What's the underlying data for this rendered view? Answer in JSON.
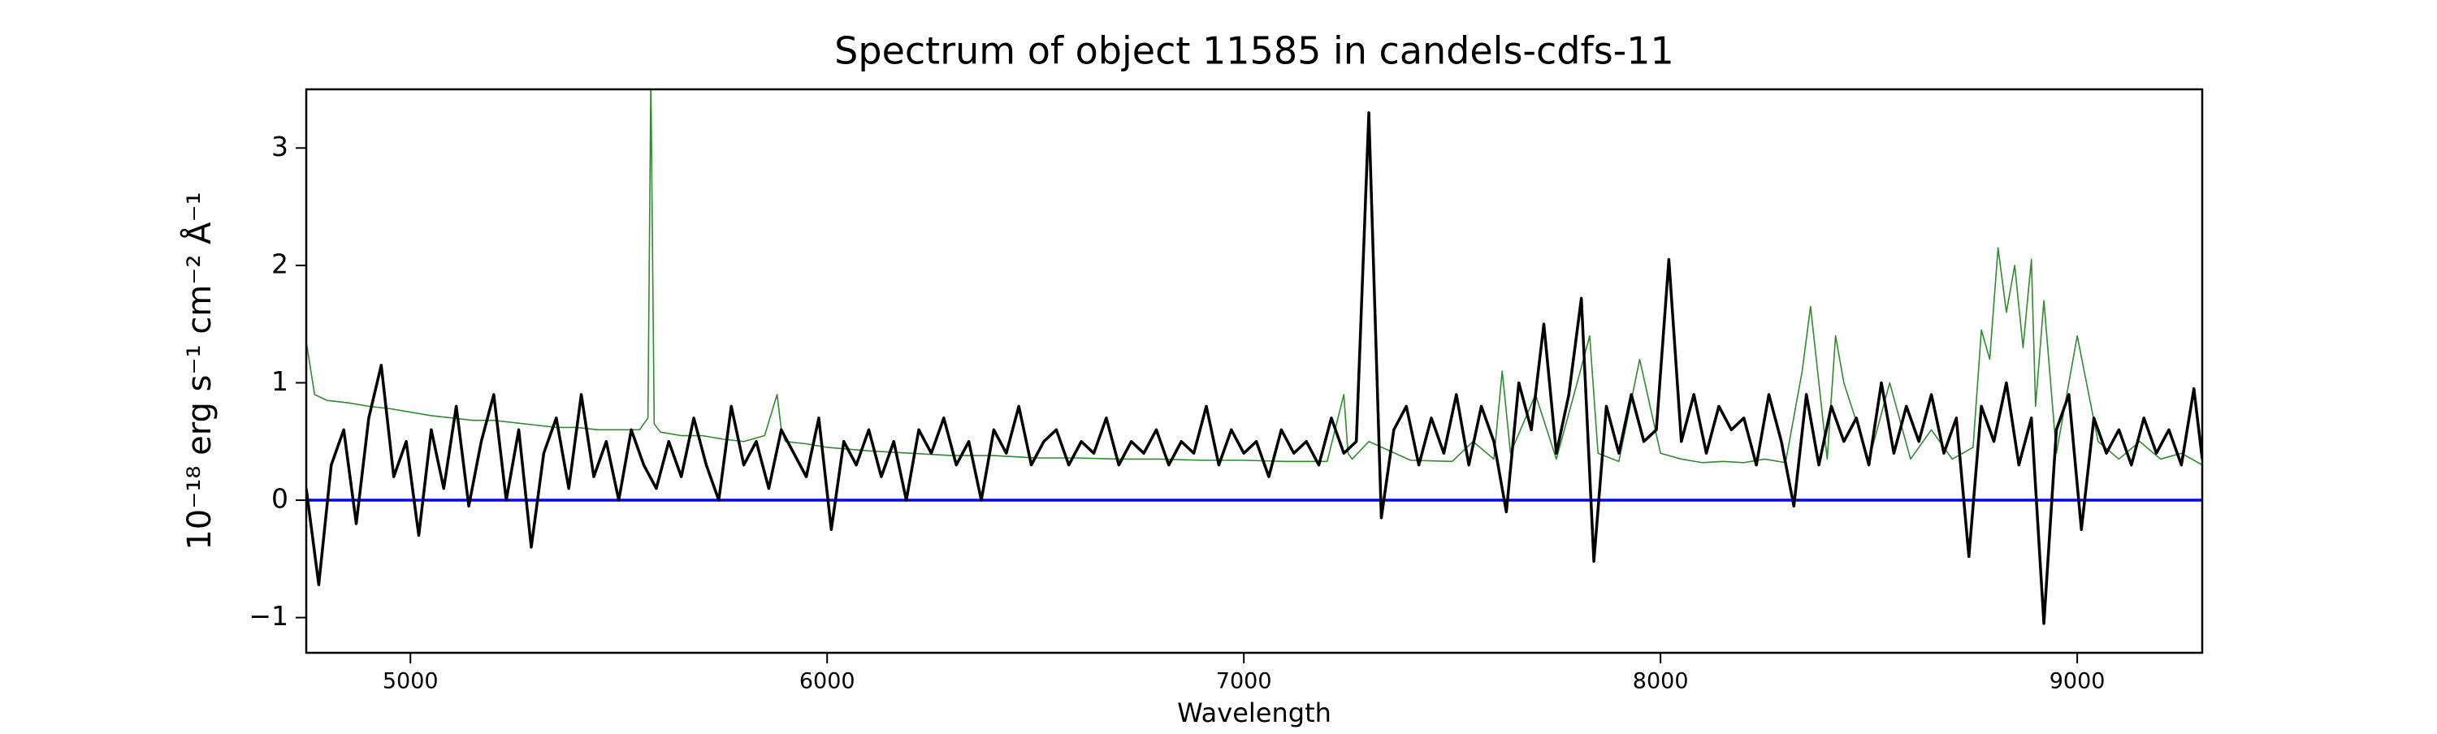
{
  "chart_data": {
    "type": "line",
    "title": "Spectrum of object 11585 in candels-cdfs-11",
    "xlabel": "Wavelength",
    "ylabel": "10⁻¹⁸ erg s⁻¹ cm⁻² Å⁻¹",
    "xlim": [
      4750,
      9300
    ],
    "ylim": [
      -1.3,
      3.5
    ],
    "xticks": [
      5000,
      6000,
      7000,
      8000,
      9000
    ],
    "yticks": [
      {
        "value": -1,
        "label": "−1"
      },
      0,
      1,
      2,
      3
    ],
    "series": [
      {
        "color": "#2e8b2e",
        "width": 1.6,
        "x": [
          4750,
          4770,
          4800,
          4850,
          4900,
          4950,
          5000,
          5050,
          5100,
          5150,
          5200,
          5250,
          5300,
          5350,
          5400,
          5450,
          5500,
          5550,
          5570,
          5577,
          5585,
          5600,
          5650,
          5700,
          5750,
          5800,
          5850,
          5880,
          5890,
          5900,
          5950,
          6000,
          6100,
          6200,
          6300,
          6400,
          6500,
          6600,
          6700,
          6800,
          6900,
          7000,
          7100,
          7200,
          7240,
          7250,
          7260,
          7300,
          7400,
          7500,
          7550,
          7600,
          7620,
          7640,
          7700,
          7750,
          7800,
          7830,
          7850,
          7900,
          7950,
          8000,
          8050,
          8100,
          8150,
          8200,
          8250,
          8300,
          8340,
          8360,
          8400,
          8420,
          8440,
          8500,
          8550,
          8600,
          8650,
          8700,
          8750,
          8770,
          8790,
          8810,
          8830,
          8850,
          8870,
          8890,
          8900,
          8920,
          8950,
          9000,
          9050,
          9100,
          9150,
          9200,
          9250,
          9300
        ],
        "values": [
          1.35,
          0.9,
          0.85,
          0.83,
          0.8,
          0.78,
          0.75,
          0.72,
          0.7,
          0.68,
          0.68,
          0.66,
          0.64,
          0.62,
          0.62,
          0.6,
          0.6,
          0.6,
          0.7,
          3.6,
          0.65,
          0.58,
          0.55,
          0.55,
          0.52,
          0.5,
          0.55,
          0.9,
          0.6,
          0.5,
          0.48,
          0.45,
          0.42,
          0.4,
          0.38,
          0.38,
          0.36,
          0.36,
          0.35,
          0.35,
          0.34,
          0.34,
          0.33,
          0.33,
          0.9,
          0.4,
          0.35,
          0.5,
          0.34,
          0.33,
          0.5,
          0.35,
          1.1,
          0.4,
          0.9,
          0.35,
          1.0,
          1.4,
          0.4,
          0.33,
          1.2,
          0.4,
          0.35,
          0.32,
          0.33,
          0.32,
          0.35,
          0.32,
          1.1,
          1.65,
          0.35,
          1.4,
          1.0,
          0.34,
          1.0,
          0.35,
          0.6,
          0.35,
          0.45,
          1.45,
          1.2,
          2.15,
          1.6,
          2.0,
          1.3,
          2.05,
          0.8,
          1.7,
          0.4,
          1.4,
          0.5,
          0.35,
          0.5,
          0.35,
          0.4,
          0.3
        ]
      },
      {
        "color": "#0000ff",
        "width": 3.5,
        "x": [
          4750,
          9300
        ],
        "values": [
          0,
          0
        ]
      },
      {
        "color": "#000000",
        "width": 3.5,
        "x": [
          4750,
          4780,
          4810,
          4840,
          4870,
          4900,
          4930,
          4960,
          4990,
          5020,
          5050,
          5080,
          5110,
          5140,
          5170,
          5200,
          5230,
          5260,
          5290,
          5320,
          5350,
          5380,
          5410,
          5440,
          5470,
          5500,
          5530,
          5560,
          5590,
          5620,
          5650,
          5680,
          5710,
          5740,
          5770,
          5800,
          5830,
          5860,
          5890,
          5920,
          5950,
          5980,
          6010,
          6040,
          6070,
          6100,
          6130,
          6160,
          6190,
          6220,
          6250,
          6280,
          6310,
          6340,
          6370,
          6400,
          6430,
          6460,
          6490,
          6520,
          6550,
          6580,
          6610,
          6640,
          6670,
          6700,
          6730,
          6760,
          6790,
          6820,
          6850,
          6880,
          6910,
          6940,
          6970,
          7000,
          7030,
          7060,
          7090,
          7120,
          7150,
          7180,
          7210,
          7240,
          7270,
          7300,
          7330,
          7360,
          7390,
          7420,
          7450,
          7480,
          7510,
          7540,
          7570,
          7600,
          7630,
          7660,
          7690,
          7720,
          7750,
          7780,
          7810,
          7840,
          7870,
          7900,
          7930,
          7960,
          7990,
          8020,
          8050,
          8080,
          8110,
          8140,
          8170,
          8200,
          8230,
          8260,
          8290,
          8320,
          8350,
          8380,
          8410,
          8440,
          8470,
          8500,
          8530,
          8560,
          8590,
          8620,
          8650,
          8680,
          8710,
          8740,
          8770,
          8800,
          8830,
          8860,
          8890,
          8920,
          8950,
          8980,
          9010,
          9040,
          9070,
          9100,
          9130,
          9160,
          9190,
          9220,
          9250,
          9280,
          9300
        ],
        "values": [
          0.1,
          -0.72,
          0.3,
          0.6,
          -0.2,
          0.7,
          1.15,
          0.2,
          0.5,
          -0.3,
          0.6,
          0.1,
          0.8,
          -0.05,
          0.5,
          0.9,
          0.0,
          0.6,
          -0.4,
          0.4,
          0.7,
          0.1,
          0.9,
          0.2,
          0.5,
          0.0,
          0.6,
          0.3,
          0.1,
          0.5,
          0.2,
          0.7,
          0.3,
          0.0,
          0.8,
          0.3,
          0.5,
          0.1,
          0.6,
          0.4,
          0.2,
          0.7,
          -0.25,
          0.5,
          0.3,
          0.6,
          0.2,
          0.5,
          0.0,
          0.6,
          0.4,
          0.7,
          0.3,
          0.5,
          0.0,
          0.6,
          0.4,
          0.8,
          0.3,
          0.5,
          0.6,
          0.3,
          0.5,
          0.4,
          0.7,
          0.3,
          0.5,
          0.4,
          0.6,
          0.3,
          0.5,
          0.4,
          0.8,
          0.3,
          0.6,
          0.4,
          0.5,
          0.2,
          0.6,
          0.4,
          0.5,
          0.3,
          0.7,
          0.4,
          0.5,
          3.3,
          -0.15,
          0.6,
          0.8,
          0.3,
          0.7,
          0.4,
          0.9,
          0.3,
          0.8,
          0.5,
          -0.1,
          1.0,
          0.6,
          1.5,
          0.4,
          0.9,
          1.72,
          -0.52,
          0.8,
          0.4,
          0.9,
          0.5,
          0.6,
          2.05,
          0.5,
          0.9,
          0.4,
          0.8,
          0.6,
          0.7,
          0.3,
          0.9,
          0.5,
          -0.05,
          0.9,
          0.3,
          0.8,
          0.5,
          0.7,
          0.3,
          1.0,
          0.4,
          0.8,
          0.5,
          0.9,
          0.4,
          0.7,
          -0.48,
          0.8,
          0.5,
          1.0,
          0.3,
          0.7,
          -1.05,
          0.6,
          0.9,
          -0.25,
          0.7,
          0.4,
          0.6,
          0.3,
          0.7,
          0.4,
          0.6,
          0.3,
          0.95,
          0.35
        ]
      }
    ]
  }
}
